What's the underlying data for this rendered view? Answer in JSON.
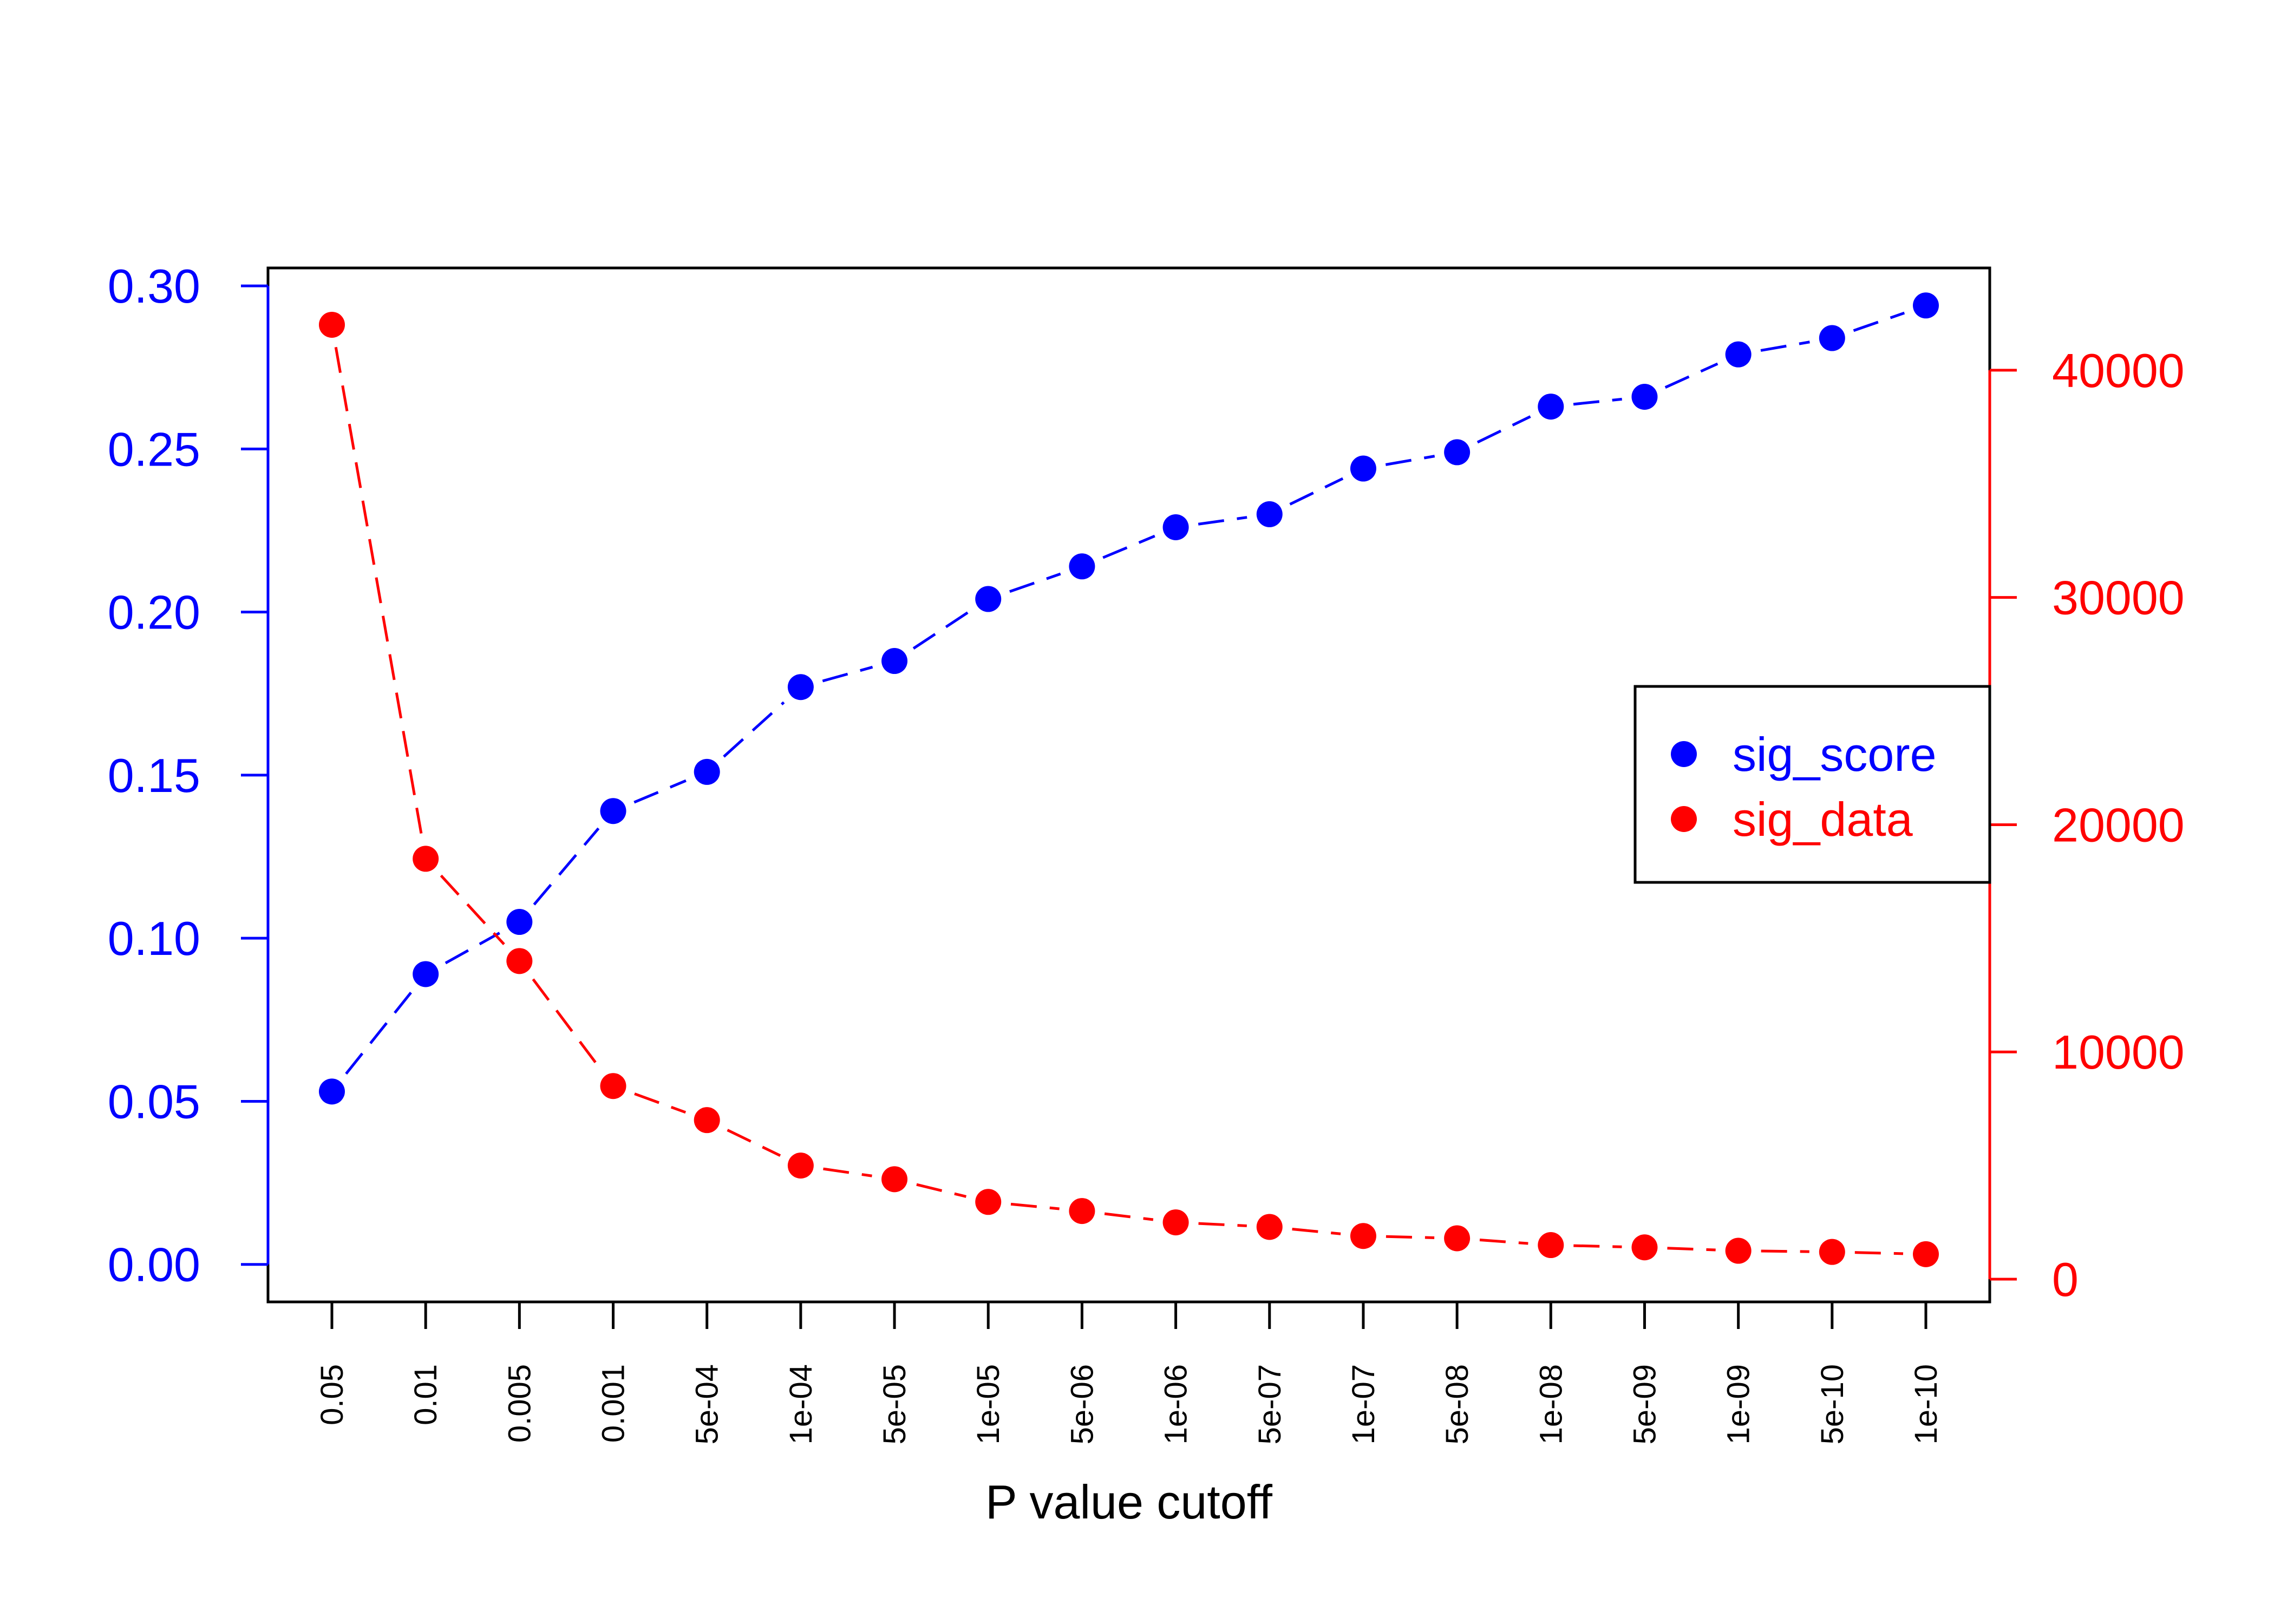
{
  "chart_data": {
    "type": "line",
    "xlabel": "P value cutoff",
    "categories": [
      "0.05",
      "0.01",
      "0.005",
      "0.001",
      "5e-04",
      "1e-04",
      "5e-05",
      "1e-05",
      "5e-06",
      "1e-06",
      "5e-07",
      "1e-07",
      "5e-08",
      "1e-08",
      "5e-09",
      "1e-09",
      "5e-10",
      "1e-10"
    ],
    "series": [
      {
        "name": "sig_score",
        "axis": "left",
        "color": "#0000ff",
        "line_style": "dashed",
        "values": [
          0.053,
          0.089,
          0.105,
          0.139,
          0.151,
          0.177,
          0.185,
          0.204,
          0.214,
          0.226,
          0.23,
          0.244,
          0.249,
          0.263,
          0.266,
          0.279,
          0.284,
          0.294
        ]
      },
      {
        "name": "sig_data",
        "axis": "right",
        "color": "#ff0000",
        "line_style": "dashed",
        "values": [
          42000,
          18500,
          14000,
          8500,
          7000,
          5000,
          4400,
          3400,
          3000,
          2500,
          2300,
          1900,
          1800,
          1500,
          1400,
          1250,
          1200,
          1100
        ]
      }
    ],
    "left_axis": {
      "ylim": [
        -0.0115,
        0.3055
      ],
      "ticks": [
        "0.00",
        "0.05",
        "0.10",
        "0.15",
        "0.20",
        "0.25",
        "0.30"
      ],
      "color": "#0000ff"
    },
    "right_axis": {
      "ylim": [
        -1000,
        44500
      ],
      "ticks": [
        "0",
        "10000",
        "20000",
        "30000",
        "40000"
      ],
      "color": "#ff0000"
    },
    "legend_position": "right",
    "grid": false
  }
}
